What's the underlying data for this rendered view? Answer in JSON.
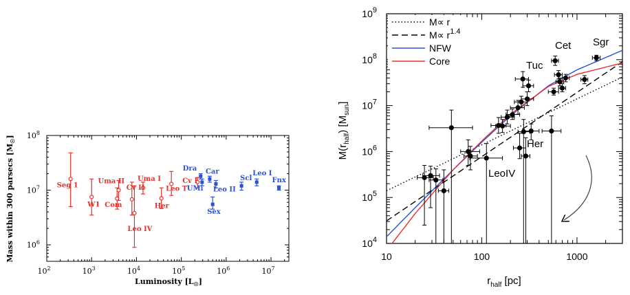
{
  "left_chart": {
    "xlabel": "Luminosity [L",
    "xlabel_sub": "☉",
    "xlabel_end": "]",
    "ylabel": "Mass within 300 parsecs [M",
    "ylabel_sub": "☉",
    "ylabel_end": "]",
    "xticks": [
      {
        "exp": "2",
        "v": 100
      },
      {
        "exp": "3",
        "v": 1000
      },
      {
        "exp": "4",
        "v": 10000
      },
      {
        "exp": "5",
        "v": 100000
      },
      {
        "exp": "6",
        "v": 1000000
      },
      {
        "exp": "7",
        "v": 10000000
      }
    ],
    "yticks": [
      {
        "exp": "6",
        "v": 1000000
      },
      {
        "exp": "7",
        "v": 10000000
      },
      {
        "exp": "8",
        "v": 100000000
      }
    ],
    "tick_base": "10",
    "red_color": "#e8302a",
    "blue_color": "#2a50d8"
  },
  "right_chart": {
    "xlabel": "r",
    "xlabel_sub": "half",
    "xlabel_end": " [pc]",
    "ylabel": "M(r",
    "ylabel_sub": "half",
    "ylabel_mid": ")  [M",
    "ylabel_sub2": "sun",
    "ylabel_end": "]",
    "xticks": [
      {
        "t": "10",
        "v": 10
      },
      {
        "t": "100",
        "v": 100
      },
      {
        "t": "1000",
        "v": 1000
      }
    ],
    "yticks": [
      {
        "exp": "4",
        "v": 10000
      },
      {
        "exp": "5",
        "v": 100000
      },
      {
        "exp": "6",
        "v": 1000000
      },
      {
        "exp": "7",
        "v": 10000000
      },
      {
        "exp": "8",
        "v": 100000000
      },
      {
        "exp": "9",
        "v": 1000000000
      }
    ],
    "tick_base": "10",
    "legend": [
      {
        "text": "M∝ r",
        "sup": "",
        "style": "dotted",
        "color": "#000000"
      },
      {
        "text": "M∝ r",
        "sup": "1.4",
        "style": "dashed",
        "color": "#000000"
      },
      {
        "text": "NFW",
        "sup": "",
        "style": "solid",
        "color": "#2a50d8"
      },
      {
        "text": "Core",
        "sup": "",
        "style": "solid",
        "color": "#e8302a"
      }
    ],
    "labels": [
      "Cet",
      "Sgr",
      "Tuc",
      "Her",
      "LeoIV"
    ]
  },
  "chart_data": [
    {
      "type": "scatter",
      "title": "",
      "xlabel": "Luminosity [L☉]",
      "ylabel": "Mass within 300 parsecs [M☉]",
      "xscale": "log",
      "yscale": "log",
      "xlim": [
        100,
        25000000
      ],
      "ylim": [
        500000,
        100000000
      ],
      "series": [
        {
          "name": "red",
          "color": "#e8302a",
          "points": [
            {
              "label": "Seg 1",
              "x": 340,
              "y": 16000000,
              "lo": 5000000,
              "hi": 48000000
            },
            {
              "label": "W1",
              "x": 1000,
              "y": 7500000,
              "lo": 3500000,
              "hi": 16000000
            },
            {
              "label": "Com",
              "x": 3700,
              "y": 7000000,
              "lo": 4500000,
              "hi": 11000000
            },
            {
              "label": "Uma II",
              "x": 4000,
              "y": 10000000,
              "lo": 6500000,
              "hi": 15000000
            },
            {
              "label": "Cv II",
              "x": 7900,
              "y": 6800000,
              "lo": 3500000,
              "hi": 14000000
            },
            {
              "label": "Leo IV",
              "x": 9000,
              "y": 3800000,
              "lo": 900000,
              "hi": 12000000
            },
            {
              "label": "Uma I",
              "x": 14000,
              "y": 11000000,
              "lo": 8500000,
              "hi": 14000000
            },
            {
              "label": "Her",
              "x": 36000,
              "y": 7100000,
              "lo": 4600000,
              "hi": 11000000
            },
            {
              "label": "Leo T",
              "x": 60000,
              "y": 13000000,
              "lo": 8000000,
              "hi": 22000000
            },
            {
              "label": "Cv I",
              "x": 230000,
              "y": 14000000,
              "lo": 11000000,
              "hi": 17000000
            }
          ]
        },
        {
          "name": "blue",
          "color": "#2a50d8",
          "points": [
            {
              "label": "Dra",
              "x": 270000,
              "y": 18000000,
              "lo": 16000000,
              "hi": 20000000
            },
            {
              "label": "UMi",
              "x": 290000,
              "y": 14000000,
              "lo": 12000000,
              "hi": 16000000
            },
            {
              "label": "Car",
              "x": 430000,
              "y": 16000000,
              "lo": 14000000,
              "hi": 18000000
            },
            {
              "label": "Leo II",
              "x": 590000,
              "y": 13000000,
              "lo": 11000000,
              "hi": 15000000
            },
            {
              "label": "Sex",
              "x": 500000,
              "y": 5500000,
              "lo": 4500000,
              "hi": 7500000
            },
            {
              "label": "Scl",
              "x": 2200000,
              "y": 12000000,
              "lo": 10000000,
              "hi": 14000000
            },
            {
              "label": "Leo I",
              "x": 4800000,
              "y": 14000000,
              "lo": 12000000,
              "hi": 16000000
            },
            {
              "label": "Fnx",
              "x": 15000000,
              "y": 11000000,
              "lo": 10000000,
              "hi": 12000000
            }
          ]
        }
      ]
    },
    {
      "type": "scatter",
      "title": "",
      "xlabel": "r_half [pc]",
      "ylabel": "M(r_half) [M_sun]",
      "xscale": "log",
      "yscale": "log",
      "xlim": [
        10,
        3000
      ],
      "ylim": [
        10000,
        1000000000
      ],
      "points": [
        {
          "x": 25,
          "y": 270000,
          "xlo": 21,
          "xhi": 31,
          "ylo": 25000,
          "yhi": 500000
        },
        {
          "x": 29,
          "y": 300000,
          "xlo": 24,
          "xhi": 36,
          "ylo": 60000,
          "yhi": 480000
        },
        {
          "x": 33,
          "y": 240000,
          "xlo": 28,
          "xhi": 39,
          "ylo": 10000,
          "yhi": 420000
        },
        {
          "x": 40,
          "y": 140000,
          "xlo": 35,
          "xhi": 45,
          "ylo": 10000,
          "yhi": 400000
        },
        {
          "x": 48,
          "y": 3300000,
          "xlo": 28,
          "xhi": 80,
          "ylo": 10000,
          "yhi": 8000000
        },
        {
          "x": 72,
          "y": 1000000,
          "xlo": 60,
          "xhi": 95,
          "ylo": 500000,
          "yhi": 1800000
        },
        {
          "x": 76,
          "y": 800000,
          "xlo": 65,
          "xhi": 90,
          "ylo": 400000,
          "yhi": 1300000
        },
        {
          "x": 112,
          "y": 720000,
          "xlo": 75,
          "xhi": 165,
          "ylo": 10000,
          "yhi": 1500000
        },
        {
          "x": 150,
          "y": 3700000,
          "xlo": 125,
          "xhi": 180,
          "ylo": 2500000,
          "yhi": 5500000
        },
        {
          "x": 165,
          "y": 3600000,
          "xlo": 140,
          "xhi": 200,
          "ylo": 2600000,
          "yhi": 5000000
        },
        {
          "x": 185,
          "y": 5600000,
          "xlo": 160,
          "xhi": 220,
          "ylo": 4000000,
          "yhi": 8000000
        },
        {
          "x": 210,
          "y": 6400000,
          "xlo": 180,
          "xhi": 250,
          "ylo": 5000000,
          "yhi": 8500000
        },
        {
          "x": 240,
          "y": 9000000,
          "xlo": 200,
          "xhi": 280,
          "ylo": 6500000,
          "yhi": 13000000
        },
        {
          "x": 250,
          "y": 1200000,
          "xlo": 215,
          "xhi": 290,
          "ylo": 700000,
          "yhi": 2500000
        },
        {
          "x": 260,
          "y": 12000000,
          "xlo": 220,
          "xhi": 300,
          "ylo": 9000000,
          "yhi": 16000000
        },
        {
          "x": 270,
          "y": 38000000,
          "xlo": 225,
          "xhi": 310,
          "ylo": 25000000,
          "yhi": 55000000
        },
        {
          "x": 275,
          "y": 2700000,
          "xlo": 240,
          "xhi": 320,
          "ylo": 10000,
          "yhi": 5000000
        },
        {
          "x": 290,
          "y": 800000,
          "xlo": 260,
          "xhi": 320,
          "ylo": 10000,
          "yhi": 2000000
        },
        {
          "x": 300,
          "y": 14000000,
          "xlo": 260,
          "xhi": 350,
          "ylo": 10000000,
          "yhi": 20000000
        },
        {
          "x": 310,
          "y": 27000000,
          "xlo": 270,
          "xhi": 350,
          "ylo": 20000000,
          "yhi": 36000000
        },
        {
          "x": 330,
          "y": 2800000,
          "xlo": 280,
          "xhi": 400,
          "ylo": 1800000,
          "yhi": 4000000
        },
        {
          "x": 540,
          "y": 2800000,
          "xlo": 430,
          "xhi": 680,
          "ylo": 10000,
          "yhi": 6000000
        },
        {
          "x": 570,
          "y": 20000000,
          "xlo": 500,
          "xhi": 640,
          "ylo": 17000000,
          "yhi": 24000000
        },
        {
          "x": 590,
          "y": 95000000,
          "xlo": 540,
          "xhi": 640,
          "ylo": 75000000,
          "yhi": 120000000
        },
        {
          "x": 640,
          "y": 47000000,
          "xlo": 580,
          "xhi": 700,
          "ylo": 38000000,
          "yhi": 58000000
        },
        {
          "x": 660,
          "y": 33000000,
          "xlo": 600,
          "xhi": 720,
          "ylo": 27000000,
          "yhi": 40000000
        },
        {
          "x": 700,
          "y": 24000000,
          "xlo": 640,
          "xhi": 760,
          "ylo": 20000000,
          "yhi": 30000000
        },
        {
          "x": 760,
          "y": 40000000,
          "xlo": 700,
          "xhi": 830,
          "ylo": 33000000,
          "yhi": 48000000
        },
        {
          "x": 1200,
          "y": 37000000,
          "xlo": 1100,
          "xhi": 1300,
          "ylo": 30000000,
          "yhi": 45000000
        },
        {
          "x": 1600,
          "y": 110000000,
          "xlo": 1450,
          "xhi": 1750,
          "ylo": 95000000,
          "yhi": 125000000
        }
      ],
      "curves": [
        {
          "name": "M∝ r",
          "style": "dotted",
          "color": "#000000",
          "x": [
            10,
            3000
          ],
          "y": [
            140000,
            42000000
          ]
        },
        {
          "name": "M∝ r^1.4",
          "style": "dashed",
          "color": "#000000",
          "x": [
            10,
            3000
          ],
          "y": [
            31000,
            90000000
          ]
        },
        {
          "name": "NFW",
          "style": "solid",
          "color": "#2a50d8",
          "x": [
            10,
            20,
            50,
            100,
            200,
            500,
            1000,
            3000
          ],
          "y": [
            14000,
            60000,
            400000,
            1600000,
            6000000,
            27000000,
            60000000,
            160000000
          ]
        },
        {
          "name": "Core",
          "style": "solid",
          "color": "#e8302a",
          "x": [
            10,
            20,
            50,
            100,
            200,
            500,
            1000,
            3000
          ],
          "y": [
            7000,
            45000,
            400000,
            1700000,
            6500000,
            26000000,
            48000000,
            85000000
          ]
        }
      ]
    }
  ]
}
